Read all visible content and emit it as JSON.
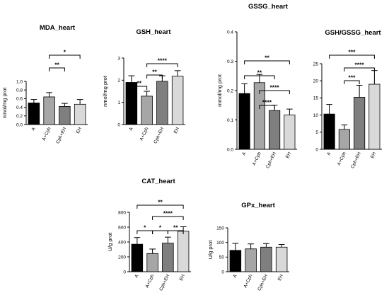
{
  "chart_data": [
    {
      "type": "bar",
      "title": "MDA_heart",
      "ylabel": "nmol/mg prot",
      "categories": [
        "A",
        "A+Cph",
        "Cph+EH",
        "EH"
      ],
      "values": [
        0.5,
        0.64,
        0.42,
        0.47
      ],
      "errors": [
        0.08,
        0.1,
        0.07,
        0.11
      ],
      "ylim": [
        0,
        1.0
      ],
      "yticks": [
        "0.0",
        "0.2",
        "0.4",
        "0.6",
        "0.8",
        "1.0"
      ],
      "bar_colors": [
        "#000000",
        "#a6a6a6",
        "#7f7f7f",
        "#d9d9d9"
      ],
      "significance": [
        {
          "from": 1,
          "to": 2,
          "label": "**"
        },
        {
          "from": 1,
          "to": 3,
          "label": "*"
        }
      ]
    },
    {
      "type": "bar",
      "title": "GSH_heart",
      "ylabel": "nmol/mg prot",
      "categories": [
        "A",
        "A+Cph",
        "Cph+EH",
        "EH"
      ],
      "values": [
        1.9,
        1.28,
        1.95,
        2.18
      ],
      "errors": [
        0.3,
        0.22,
        0.25,
        0.25
      ],
      "ylim": [
        0,
        3
      ],
      "yticks": [
        "0",
        "1",
        "2",
        "3"
      ],
      "bar_colors": [
        "#000000",
        "#a6a6a6",
        "#7f7f7f",
        "#d9d9d9"
      ],
      "significance": [
        {
          "from": 0,
          "to": 1,
          "label": "**"
        },
        {
          "from": 1,
          "to": 2,
          "label": "**"
        },
        {
          "from": 1,
          "to": 3,
          "label": "****"
        }
      ]
    },
    {
      "type": "bar",
      "title": "GSSG_heart",
      "ylabel": "mmol/mg prot",
      "categories": [
        "A",
        "A+Cph",
        "Cph+EH",
        "EH"
      ],
      "values": [
        0.19,
        0.227,
        0.132,
        0.117
      ],
      "errors": [
        0.033,
        0.028,
        0.018,
        0.02
      ],
      "ylim": [
        0,
        0.4
      ],
      "yticks": [
        "0.0",
        "0.1",
        "0.2",
        "0.3",
        "0.4"
      ],
      "bar_colors": [
        "#000000",
        "#a6a6a6",
        "#7f7f7f",
        "#d9d9d9"
      ],
      "significance": [
        {
          "from": 1,
          "to": 2,
          "label": "****"
        },
        {
          "from": 1,
          "to": 3,
          "label": "****"
        },
        {
          "from": 0,
          "to": 2,
          "label": "**"
        },
        {
          "from": 0,
          "to": 3,
          "label": "**"
        }
      ]
    },
    {
      "type": "bar",
      "title": "GSH/GSSG_heart",
      "ylabel": "",
      "categories": [
        "A",
        "A+Cph",
        "Cph+EH",
        "EH"
      ],
      "values": [
        10.3,
        5.8,
        15.2,
        19.0
      ],
      "errors": [
        2.8,
        1.3,
        3.5,
        4.0
      ],
      "ylim": [
        0,
        25
      ],
      "yticks": [
        "0",
        "5",
        "10",
        "15",
        "20",
        "25"
      ],
      "bar_colors": [
        "#000000",
        "#a6a6a6",
        "#7f7f7f",
        "#d9d9d9"
      ],
      "significance": [
        {
          "from": 1,
          "to": 2,
          "label": "***"
        },
        {
          "from": 1,
          "to": 3,
          "label": "****"
        },
        {
          "from": 0,
          "to": 3,
          "label": "***"
        }
      ]
    },
    {
      "type": "bar",
      "title": "CAT_heart",
      "ylabel": "U/g prot",
      "categories": [
        "A",
        "A+Cph",
        "Cph+EH",
        "EH"
      ],
      "values": [
        370,
        245,
        385,
        545
      ],
      "errors": [
        90,
        60,
        80,
        60
      ],
      "ylim": [
        0,
        800
      ],
      "yticks": [
        "0",
        "200",
        "400",
        "600",
        "800"
      ],
      "bar_colors": [
        "#000000",
        "#a6a6a6",
        "#7f7f7f",
        "#d9d9d9"
      ],
      "significance": [
        {
          "from": 0,
          "to": 1,
          "label": "*"
        },
        {
          "from": 1,
          "to": 2,
          "label": "*"
        },
        {
          "from": 2,
          "to": 3,
          "label": "**"
        },
        {
          "from": 1,
          "to": 3,
          "label": "****"
        },
        {
          "from": 0,
          "to": 3,
          "label": "**"
        }
      ]
    },
    {
      "type": "bar",
      "title": "GPx_heart",
      "ylabel": "U/g prot",
      "categories": [
        "A",
        "A+Cph",
        "Cph+EH",
        "EH"
      ],
      "values": [
        73,
        78,
        84,
        84
      ],
      "errors": [
        24,
        17,
        12,
        9
      ],
      "ylim": [
        0,
        150
      ],
      "yticks": [
        "0",
        "50",
        "100",
        "150"
      ],
      "bar_colors": [
        "#000000",
        "#a6a6a6",
        "#7f7f7f",
        "#d9d9d9"
      ],
      "significance": []
    }
  ]
}
